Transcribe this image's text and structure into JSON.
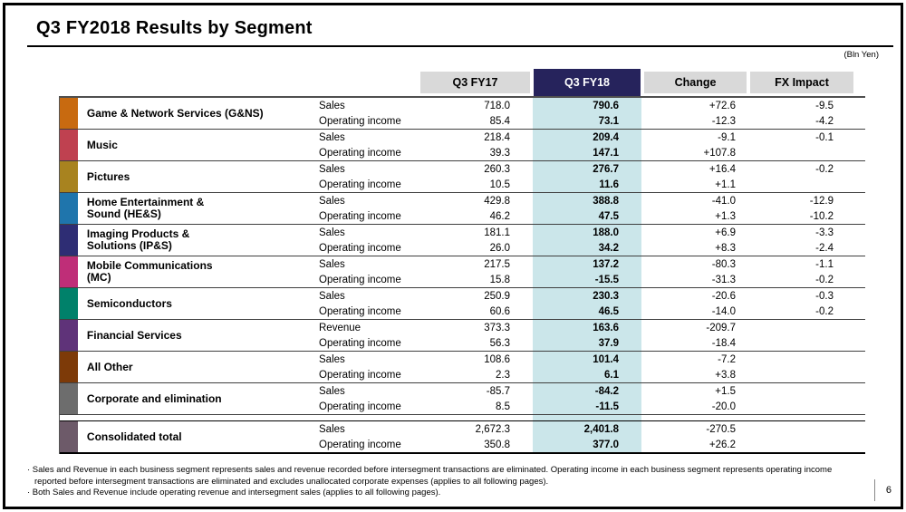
{
  "slide": {
    "title": "Q3 FY2018 Results by Segment",
    "unit_note": "(Bln Yen)",
    "page_number": "6"
  },
  "table": {
    "columns": {
      "fy17": "Q3 FY17",
      "fy18": "Q3 FY18",
      "change": "Change",
      "fx": "FX Impact"
    },
    "highlight_color": "#cbe6ea",
    "header_accent_color": "#26235c",
    "header_gray_color": "#d9d9d9",
    "segments": [
      {
        "name": "Game & Network Services (G&NS)",
        "color": "#c86a10",
        "rows": [
          {
            "label": "Sales",
            "fy17": "718.0",
            "fy18": "790.6",
            "change": "+72.6",
            "fx": "-9.5"
          },
          {
            "label": "Operating income",
            "fy17": "85.4",
            "fy18": "73.1",
            "change": "-12.3",
            "fx": "-4.2"
          }
        ]
      },
      {
        "name": "Music",
        "color": "#bf4150",
        "rows": [
          {
            "label": "Sales",
            "fy17": "218.4",
            "fy18": "209.4",
            "change": "-9.1",
            "fx": "-0.1"
          },
          {
            "label": "Operating income",
            "fy17": "39.3",
            "fy18": "147.1",
            "change": "+107.8",
            "fx": ""
          }
        ]
      },
      {
        "name": "Pictures",
        "color": "#a8831f",
        "rows": [
          {
            "label": "Sales",
            "fy17": "260.3",
            "fy18": "276.7",
            "change": "+16.4",
            "fx": "-0.2"
          },
          {
            "label": "Operating income",
            "fy17": "10.5",
            "fy18": "11.6",
            "change": "+1.1",
            "fx": ""
          }
        ]
      },
      {
        "name": "Home Entertainment &\nSound (HE&S)",
        "color": "#1f75ac",
        "rows": [
          {
            "label": "Sales",
            "fy17": "429.8",
            "fy18": "388.8",
            "change": "-41.0",
            "fx": "-12.9"
          },
          {
            "label": "Operating income",
            "fy17": "46.2",
            "fy18": "47.5",
            "change": "+1.3",
            "fx": "-10.2"
          }
        ]
      },
      {
        "name": "Imaging Products &\nSolutions (IP&S)",
        "color": "#2e2d74",
        "rows": [
          {
            "label": "Sales",
            "fy17": "181.1",
            "fy18": "188.0",
            "change": "+6.9",
            "fx": "-3.3"
          },
          {
            "label": "Operating income",
            "fy17": "26.0",
            "fy18": "34.2",
            "change": "+8.3",
            "fx": "-2.4"
          }
        ]
      },
      {
        "name": "Mobile Communications\n(MC)",
        "color": "#bf2e78",
        "rows": [
          {
            "label": "Sales",
            "fy17": "217.5",
            "fy18": "137.2",
            "change": "-80.3",
            "fx": "-1.1"
          },
          {
            "label": "Operating income",
            "fy17": "15.8",
            "fy18": "-15.5",
            "change": "-31.3",
            "fx": "-0.2"
          }
        ]
      },
      {
        "name": "Semiconductors",
        "color": "#00816a",
        "rows": [
          {
            "label": "Sales",
            "fy17": "250.9",
            "fy18": "230.3",
            "change": "-20.6",
            "fx": "-0.3"
          },
          {
            "label": "Operating income",
            "fy17": "60.6",
            "fy18": "46.5",
            "change": "-14.0",
            "fx": "-0.2"
          }
        ]
      },
      {
        "name": "Financial Services",
        "color": "#5f3379",
        "rows": [
          {
            "label": "Revenue",
            "fy17": "373.3",
            "fy18": "163.6",
            "change": "-209.7",
            "fx": ""
          },
          {
            "label": "Operating income",
            "fy17": "56.3",
            "fy18": "37.9",
            "change": "-18.4",
            "fx": ""
          }
        ]
      },
      {
        "name": "All Other",
        "color": "#7d3a08",
        "rows": [
          {
            "label": "Sales",
            "fy17": "108.6",
            "fy18": "101.4",
            "change": "-7.2",
            "fx": ""
          },
          {
            "label": "Operating income",
            "fy17": "2.3",
            "fy18": "6.1",
            "change": "+3.8",
            "fx": ""
          }
        ]
      },
      {
        "name": "Corporate and elimination",
        "color": "#6d6d6d",
        "rows": [
          {
            "label": "Sales",
            "fy17": "-85.7",
            "fy18": "-84.2",
            "change": "+1.5",
            "fx": ""
          },
          {
            "label": "Operating income",
            "fy17": "8.5",
            "fy18": "-11.5",
            "change": "-20.0",
            "fx": ""
          }
        ]
      },
      {
        "name": "Consolidated total",
        "color": "#6d5a69",
        "total": true,
        "gap_before": true,
        "rows": [
          {
            "label": "Sales",
            "fy17": "2,672.3",
            "fy18": "2,401.8",
            "change": "-270.5",
            "fx": ""
          },
          {
            "label": "Operating income",
            "fy17": "350.8",
            "fy18": "377.0",
            "change": "+26.2",
            "fx": ""
          }
        ]
      }
    ]
  },
  "footnotes": [
    "· Sales and Revenue in each business segment represents sales and revenue recorded before intersegment transactions are eliminated. Operating income in each business segment represents operating income\nreported before intersegment transactions are eliminated and excludes unallocated corporate expenses (applies to all following pages).",
    "· Both Sales and Revenue include operating revenue and intersegment sales (applies to all following pages)."
  ]
}
